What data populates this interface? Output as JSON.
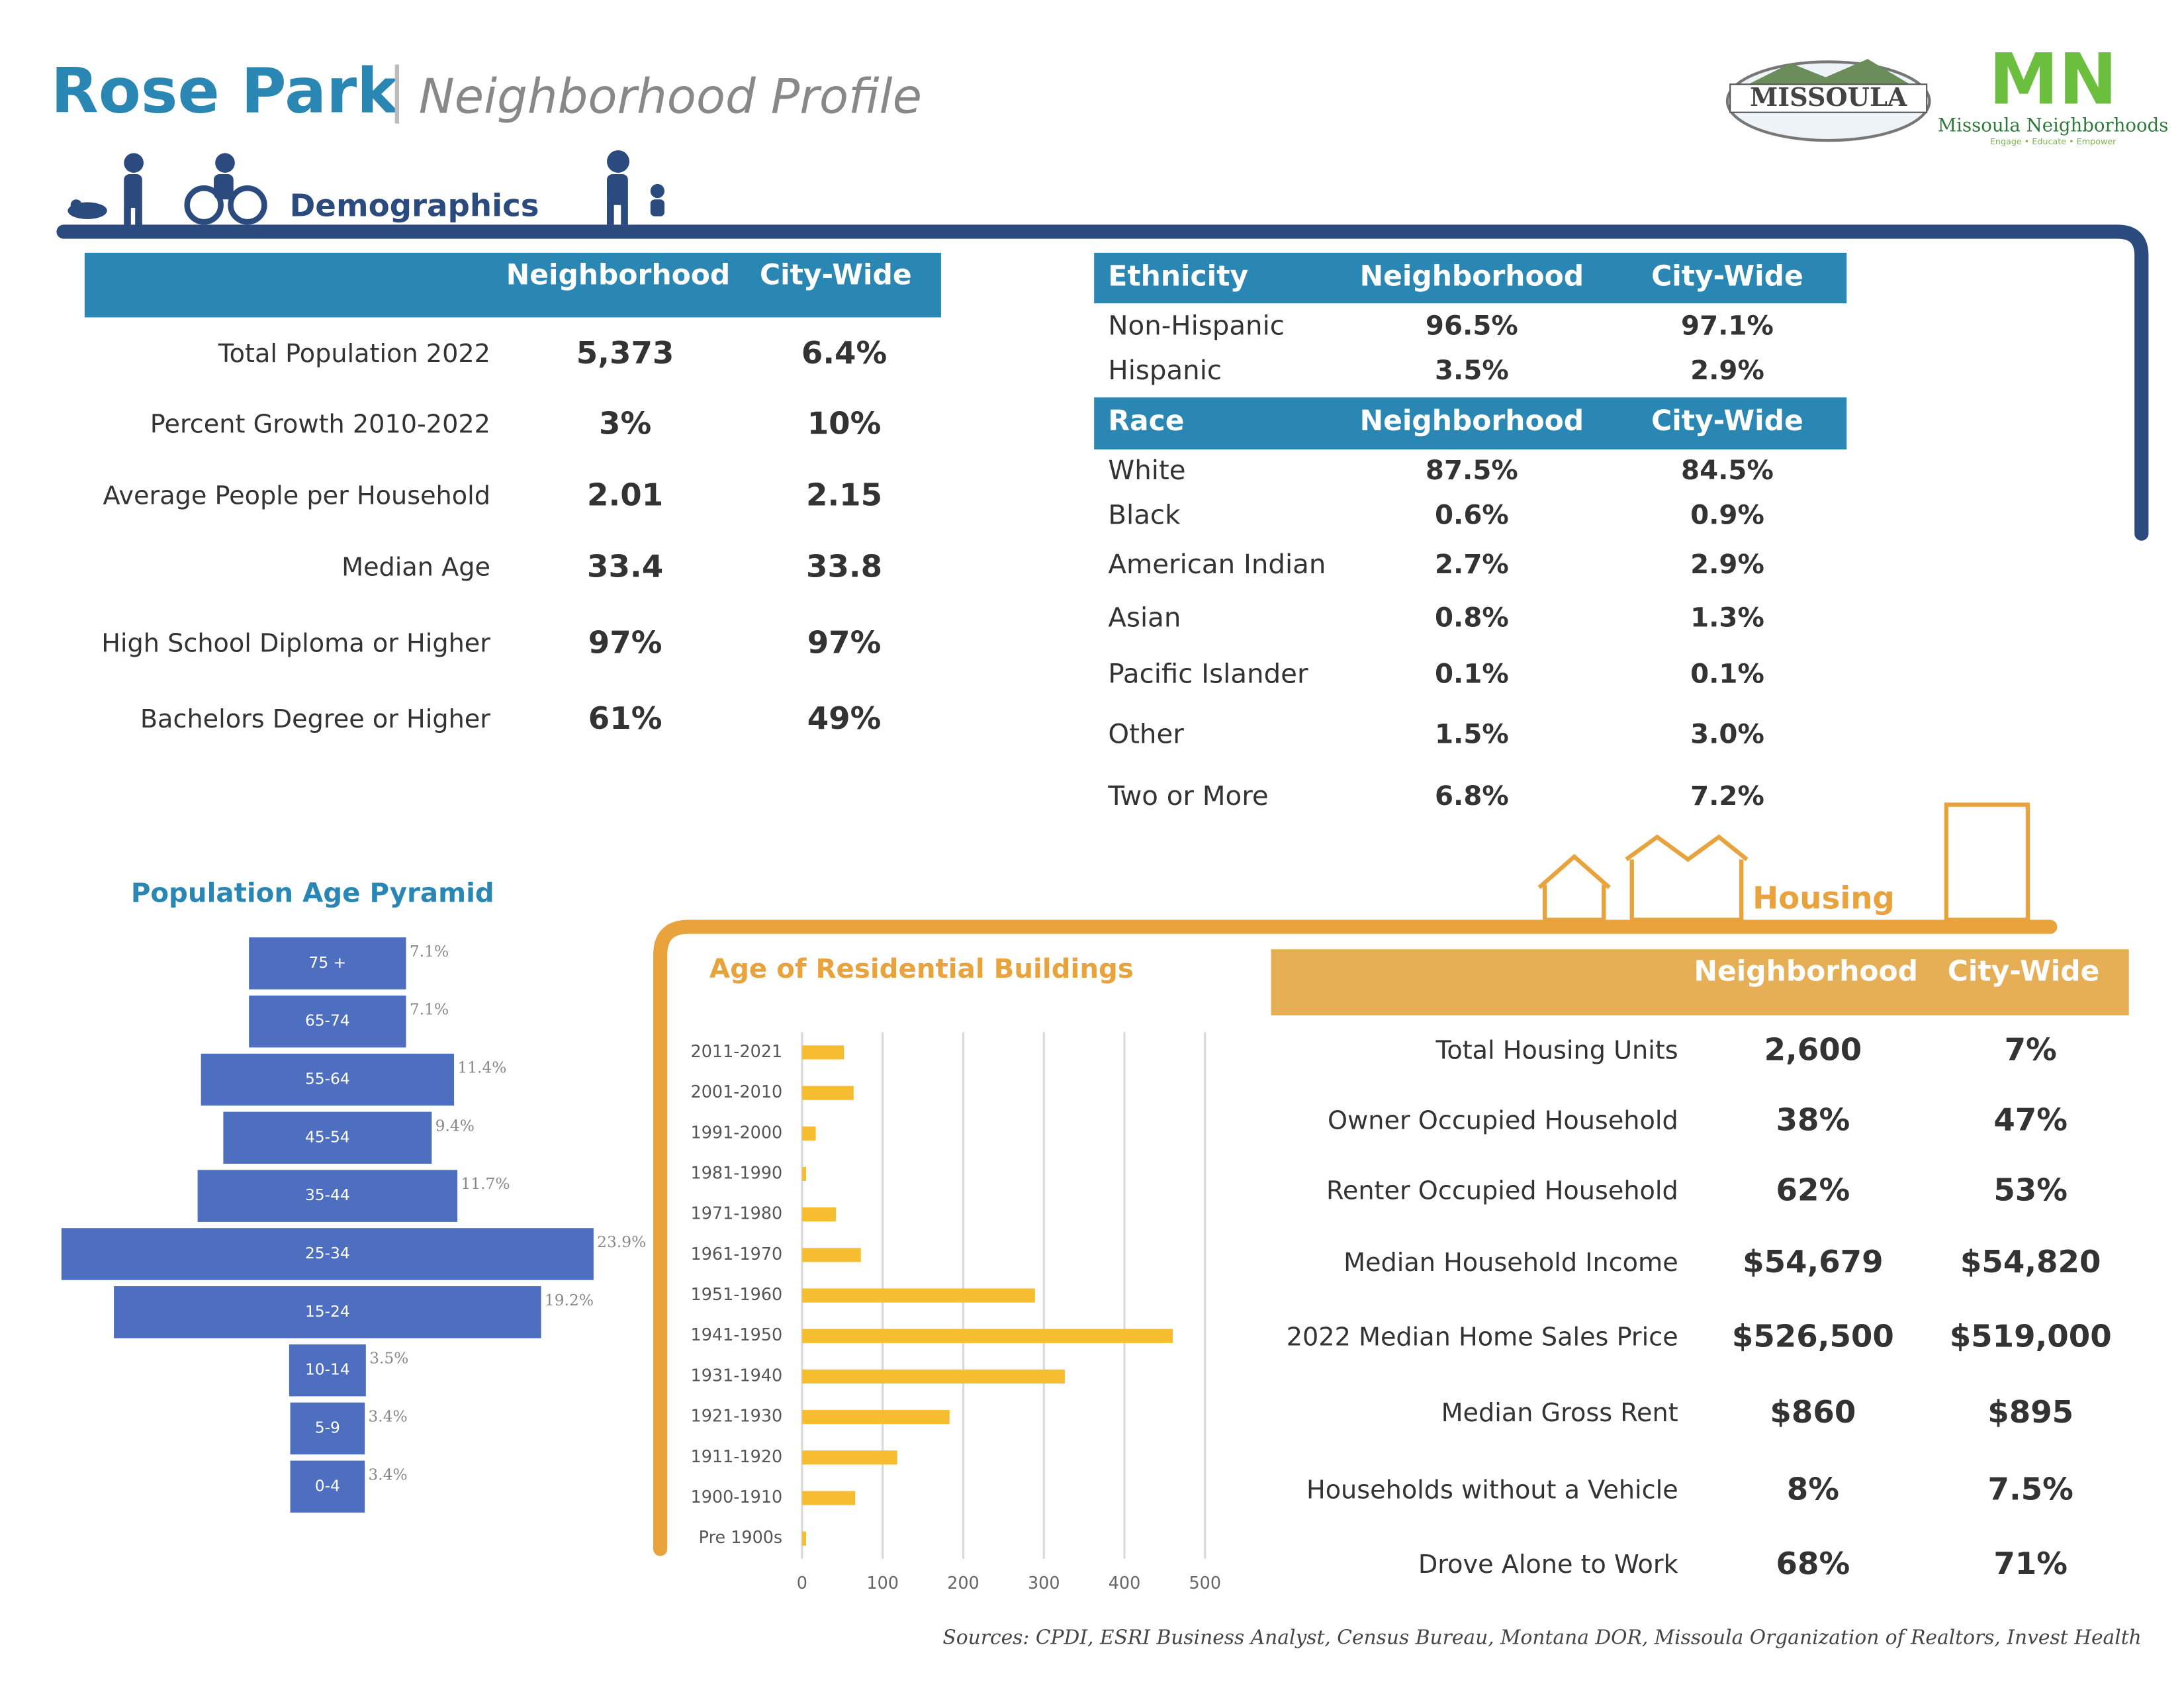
{
  "header": {
    "title": "Rose Park",
    "subtitle": "Neighborhood Profile",
    "logo_city": "MISSOULA",
    "logo_mark": "MN",
    "logo_org": "Missoula Neighborhoods",
    "logo_tagline": "Engage • Educate • Empower"
  },
  "demographics": {
    "section": "Demographics",
    "columns": [
      "Neighborhood",
      "City-Wide"
    ],
    "rows": [
      [
        "Total Population 2022",
        "5,373",
        "6.4%"
      ],
      [
        "Percent Growth 2010-2022",
        "3%",
        "10%"
      ],
      [
        "Average People per Household",
        "2.01",
        "2.15"
      ],
      [
        "Median Age",
        "33.4",
        "33.8"
      ],
      [
        "High School Diploma or Higher",
        "97%",
        "97%"
      ],
      [
        "Bachelors Degree or Higher",
        "61%",
        "49%"
      ]
    ]
  },
  "ethnicity": {
    "columns": [
      "Ethnicity",
      "Neighborhood",
      "City-Wide"
    ],
    "rows": [
      [
        "Non-Hispanic",
        "96.5%",
        "97.1%"
      ],
      [
        "Hispanic",
        "3.5%",
        "2.9%"
      ]
    ]
  },
  "race": {
    "columns": [
      "Race",
      "Neighborhood",
      "City-Wide"
    ],
    "rows": [
      [
        "White",
        "87.5%",
        "84.5%"
      ],
      [
        "Black",
        "0.6%",
        "0.9%"
      ],
      [
        "American Indian",
        "2.7%",
        "2.9%"
      ],
      [
        "Asian",
        "0.8%",
        "1.3%"
      ],
      [
        "Pacific Islander",
        "0.1%",
        "0.1%"
      ],
      [
        "Other",
        "1.5%",
        "3.0%"
      ],
      [
        "Two or More",
        "6.8%",
        "7.2%"
      ]
    ]
  },
  "housing": {
    "section": "Housing",
    "columns": [
      "Neighborhood",
      "City-Wide"
    ],
    "rows": [
      [
        "Total Housing Units",
        "2,600",
        "7%"
      ],
      [
        "Owner Occupied Household",
        "38%",
        "47%"
      ],
      [
        "Renter Occupied Household",
        "62%",
        "53%"
      ],
      [
        "Median Household Income",
        "$54,679",
        "$54,820"
      ],
      [
        "2022 Median Home Sales Price",
        "$526,500",
        "$519,000"
      ],
      [
        "Median Gross Rent",
        "$860",
        "$895"
      ],
      [
        "Households without a Vehicle",
        "8%",
        "7.5%"
      ],
      [
        "Drove Alone to Work",
        "68%",
        "71%"
      ]
    ]
  },
  "chart_data": [
    {
      "type": "pyramid",
      "title": "Population Age Pyramid",
      "color": "#4e6fbf",
      "categories": [
        "75 +",
        "65-74",
        "55-64",
        "45-54",
        "35-44",
        "25-34",
        "15-24",
        "10-14",
        "5-9",
        "0-4"
      ],
      "values": [
        7.1,
        7.1,
        11.4,
        9.4,
        11.7,
        23.9,
        19.2,
        3.5,
        3.4,
        3.4
      ],
      "value_labels": [
        "7.1%",
        "7.1%",
        "11.4%",
        "9.4%",
        "11.7%",
        "23.9%",
        "19.2%",
        "3.5%",
        "3.4%",
        "3.4%"
      ]
    },
    {
      "type": "bar",
      "orientation": "horizontal",
      "title": "Age of Residential Buildings",
      "color": "#f5bd2f",
      "categories": [
        "2011-2021",
        "2001-2010",
        "1991-2000",
        "1981-1990",
        "1971-1980",
        "1961-1970",
        "1951-1960",
        "1941-1950",
        "1931-1940",
        "1921-1930",
        "1911-1920",
        "1900-1910",
        "Pre 1900s"
      ],
      "values": [
        52,
        64,
        17,
        5,
        42,
        73,
        289,
        460,
        326,
        183,
        118,
        66,
        5
      ],
      "xlim": [
        0,
        500
      ],
      "xticks": [
        0,
        100,
        200,
        300,
        400,
        500
      ],
      "grid": true
    }
  ],
  "footer": {
    "sources": "Sources: CPDI, ESRI Business Analyst, Census Bureau, Montana DOR, Missoula Organization of Realtors, Invest Health"
  }
}
